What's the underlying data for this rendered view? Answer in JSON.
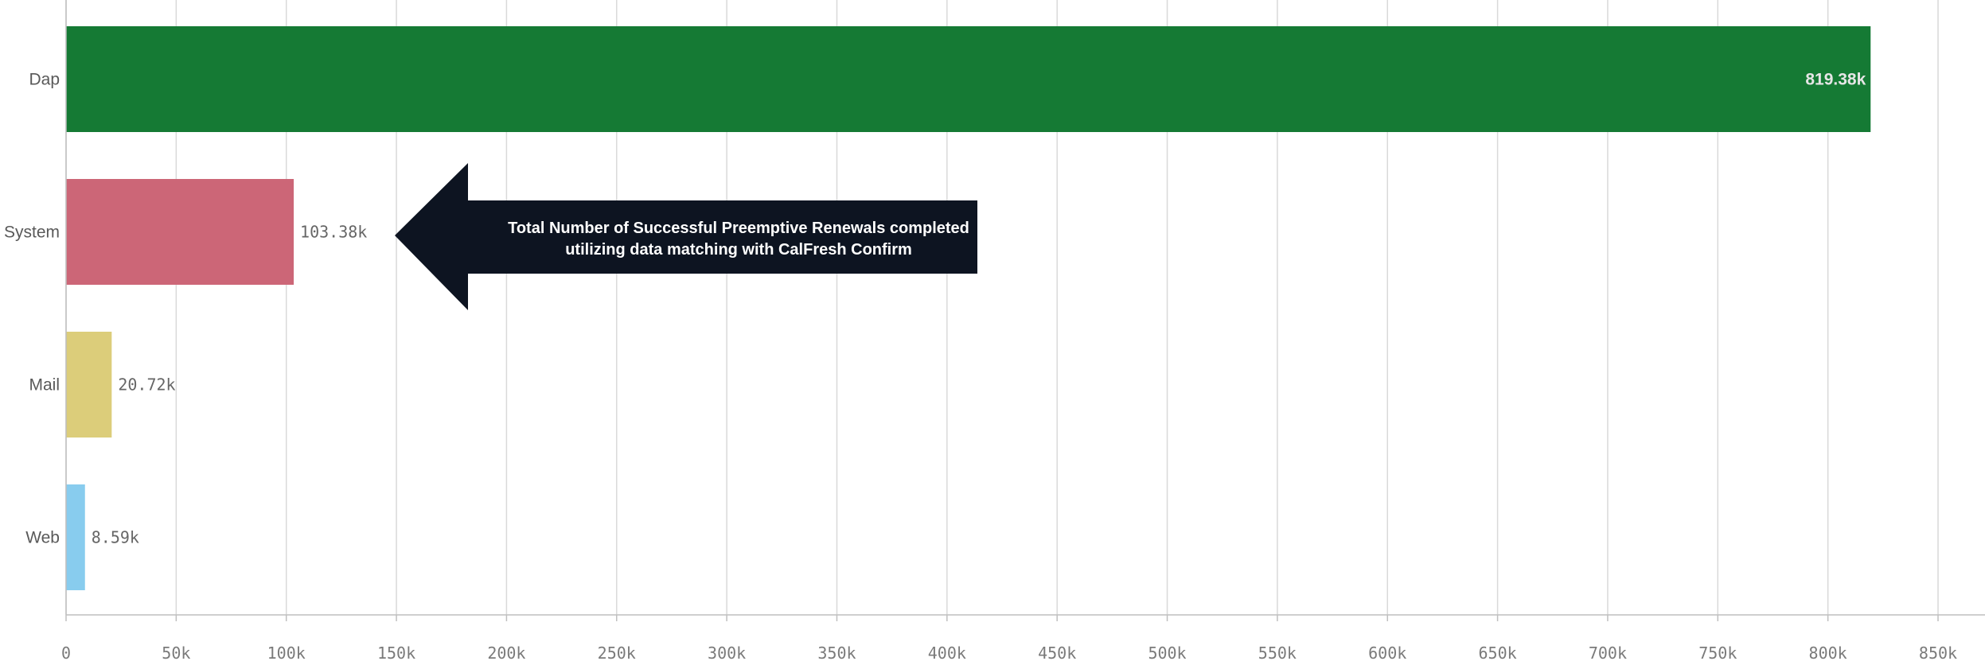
{
  "chart_data": {
    "type": "bar",
    "orientation": "horizontal",
    "categories": [
      "Dap",
      "System",
      "Mail",
      "Web"
    ],
    "values": [
      819380,
      103380,
      20720,
      8590
    ],
    "value_labels": [
      "819.38k",
      "103.38k",
      "20.72k",
      "8.59k"
    ],
    "colors": [
      "#157a34",
      "#cc6677",
      "#dccd7a",
      "#88ccee"
    ],
    "xlim": [
      0,
      850000
    ],
    "x_ticks": [
      0,
      50000,
      100000,
      150000,
      200000,
      250000,
      300000,
      350000,
      400000,
      450000,
      500000,
      550000,
      600000,
      650000,
      700000,
      750000,
      800000,
      850000
    ],
    "x_tick_labels": [
      "0",
      "50k",
      "100k",
      "150k",
      "200k",
      "250k",
      "300k",
      "350k",
      "400k",
      "450k",
      "500k",
      "550k",
      "600k",
      "650k",
      "700k",
      "750k",
      "800k",
      "850k"
    ],
    "grid": "vertical",
    "annotation": {
      "lines": [
        "Total Number of Successful Preemptive Renewals completed",
        "utilizing data matching with  CalFresh Confirm"
      ],
      "points_to": "System",
      "fill": "#0d1421"
    }
  }
}
